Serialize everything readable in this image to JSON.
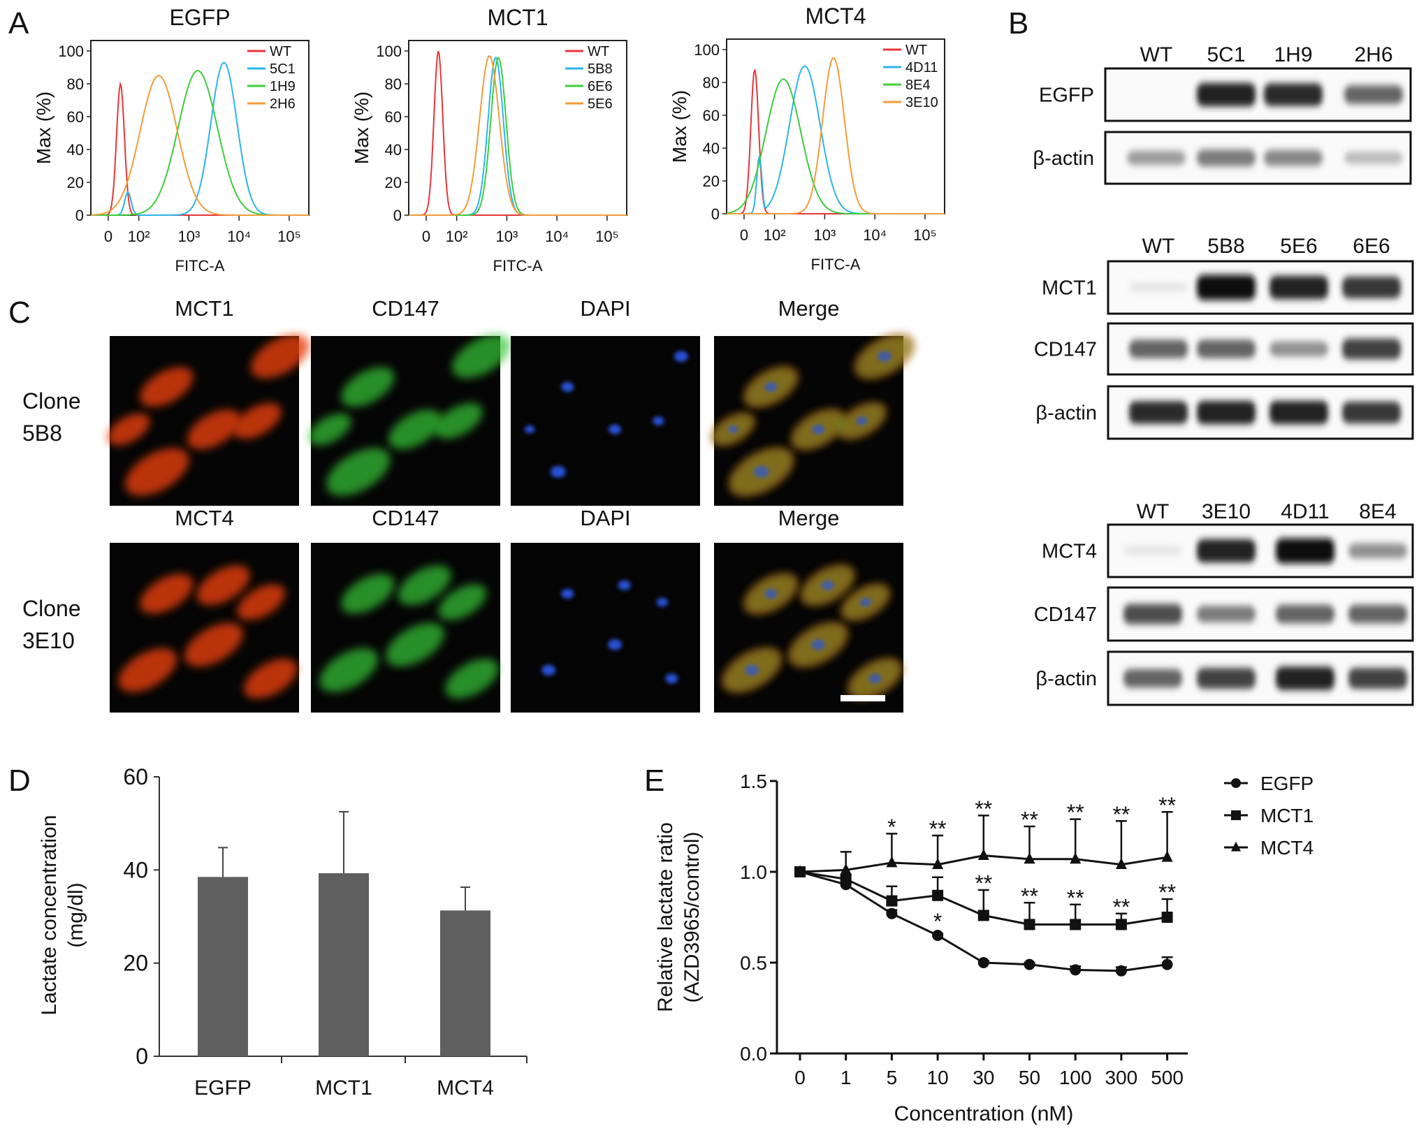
{
  "panel_labels": {
    "a": "A",
    "b": "B",
    "c": "C",
    "d": "D",
    "e": "E"
  },
  "colors": {
    "WT": "#e8363a",
    "blue": "#2bb5ea",
    "green": "#3dcc3d",
    "orange": "#f39c3a",
    "bar": "#5f5f5f",
    "mct_red": "#e8400f",
    "cd147_green": "#37c837",
    "dapi_blue": "#2a55e0"
  },
  "chart_data": [
    {
      "type": "line",
      "panel": "A",
      "title": "EGFP",
      "xlabel": "FITC-A",
      "ylabel": "Max (%)",
      "x_ticks": [
        "0",
        "10²",
        "10³",
        "10⁴",
        "10⁵"
      ],
      "y_ticks": [
        "0",
        "20",
        "40",
        "60",
        "80",
        "100"
      ],
      "ylim": [
        0,
        100
      ],
      "series": [
        {
          "name": "WT",
          "color": "#e8363a",
          "peak_fitc": 40,
          "peak_max_pct": 80
        },
        {
          "name": "5C1",
          "color": "#2bb5ea",
          "peak_fitc": 5000,
          "peak_max_pct": 93
        },
        {
          "name": "1H9",
          "color": "#3dcc3d",
          "peak_fitc": 1500,
          "peak_max_pct": 88
        },
        {
          "name": "2H6",
          "color": "#f39c3a",
          "peak_fitc": 250,
          "peak_max_pct": 85
        }
      ]
    },
    {
      "type": "line",
      "panel": "A",
      "title": "MCT1",
      "xlabel": "FITC-A",
      "ylabel": "Max (%)",
      "x_ticks": [
        "0",
        "10²",
        "10³",
        "10⁴",
        "10⁵"
      ],
      "y_ticks": [
        "0",
        "20",
        "40",
        "60",
        "80",
        "100"
      ],
      "ylim": [
        0,
        100
      ],
      "series": [
        {
          "name": "WT",
          "color": "#e8363a",
          "peak_fitc": 40,
          "peak_max_pct": 100
        },
        {
          "name": "5B8",
          "color": "#2bb5ea",
          "peak_fitc": 600,
          "peak_max_pct": 96
        },
        {
          "name": "6E6",
          "color": "#3dcc3d",
          "peak_fitc": 680,
          "peak_max_pct": 96
        },
        {
          "name": "5E6",
          "color": "#f39c3a",
          "peak_fitc": 450,
          "peak_max_pct": 97
        }
      ]
    },
    {
      "type": "line",
      "panel": "A",
      "title": "MCT4",
      "xlabel": "FITC-A",
      "ylabel": "Max (%)",
      "x_ticks": [
        "0",
        "10²",
        "10³",
        "10⁴",
        "10⁵"
      ],
      "y_ticks": [
        "0",
        "20",
        "40",
        "60",
        "80",
        "100"
      ],
      "ylim": [
        0,
        100
      ],
      "series": [
        {
          "name": "WT",
          "color": "#e8363a",
          "peak_fitc": 35,
          "peak_max_pct": 88
        },
        {
          "name": "4D11",
          "color": "#2bb5ea",
          "peak_fitc": 400,
          "peak_max_pct": 90
        },
        {
          "name": "8E4",
          "color": "#3dcc3d",
          "peak_fitc": 150,
          "peak_max_pct": 82
        },
        {
          "name": "3E10",
          "color": "#f39c3a",
          "peak_fitc": 1500,
          "peak_max_pct": 95
        }
      ]
    },
    {
      "type": "bar",
      "panel": "D",
      "categories": [
        "EGFP",
        "MCT1",
        "MCT4"
      ],
      "values": [
        38.5,
        39.3,
        31.3
      ],
      "errors": [
        6.3,
        13.2,
        5.0
      ],
      "ylabel_lines": [
        "Lactate concentration",
        "(mg/dl)"
      ],
      "xlabel": "",
      "y_ticks": [
        "0",
        "20",
        "40",
        "60"
      ],
      "ylim": [
        0,
        60
      ]
    },
    {
      "type": "line",
      "panel": "E",
      "x": [
        "0",
        "1",
        "5",
        "10",
        "30",
        "50",
        "100",
        "300",
        "500"
      ],
      "xlabel": "Concentration (nM)",
      "ylabel_lines": [
        "Relative lactate ratio",
        "(AZD3965/control)"
      ],
      "y_ticks": [
        "0.0",
        "0.5",
        "1.0",
        "1.5"
      ],
      "ylim": [
        0,
        1.5
      ],
      "legend_position": "top-right",
      "series": [
        {
          "name": "EGFP",
          "marker": "circle",
          "values": [
            1.0,
            0.93,
            0.77,
            0.65,
            0.5,
            0.49,
            0.46,
            0.455,
            0.49
          ],
          "errors": [
            0,
            0.01,
            0.02,
            0.01,
            0.01,
            0.01,
            0.02,
            0.02,
            0.04
          ]
        },
        {
          "name": "MCT1",
          "marker": "square",
          "values": [
            1.0,
            0.96,
            0.84,
            0.87,
            0.76,
            0.71,
            0.71,
            0.71,
            0.75
          ],
          "errors": [
            0,
            0.02,
            0.08,
            0.1,
            0.14,
            0.12,
            0.11,
            0.06,
            0.1
          ]
        },
        {
          "name": "MCT4",
          "marker": "triangle",
          "values": [
            1.0,
            1.01,
            1.05,
            1.04,
            1.09,
            1.07,
            1.07,
            1.04,
            1.08
          ],
          "errors": [
            0,
            0.1,
            0.16,
            0.16,
            0.22,
            0.18,
            0.22,
            0.24,
            0.25
          ]
        }
      ],
      "annotations": [
        {
          "series": "MCT4",
          "x": "5",
          "text": "*"
        },
        {
          "series": "MCT4",
          "x": "10",
          "text": "**"
        },
        {
          "series": "MCT4",
          "x": "30",
          "text": "**"
        },
        {
          "series": "MCT4",
          "x": "50",
          "text": "**"
        },
        {
          "series": "MCT4",
          "x": "100",
          "text": "**"
        },
        {
          "series": "MCT4",
          "x": "300",
          "text": "**"
        },
        {
          "series": "MCT4",
          "x": "500",
          "text": "**"
        },
        {
          "series": "MCT1",
          "x": "30",
          "text": "**"
        },
        {
          "series": "MCT1",
          "x": "50",
          "text": "**"
        },
        {
          "series": "MCT1",
          "x": "100",
          "text": "**"
        },
        {
          "series": "MCT1",
          "x": "300",
          "text": "**"
        },
        {
          "series": "MCT1",
          "x": "500",
          "text": "**"
        },
        {
          "series": "EGFP",
          "x": "10",
          "text": "*"
        }
      ]
    }
  ],
  "blots": [
    {
      "lanes": [
        "WT",
        "5C1",
        "1H9",
        "2H6"
      ],
      "rows": [
        {
          "label": "EGFP",
          "intensity": [
            0.0,
            0.9,
            0.85,
            0.6
          ]
        },
        {
          "label": "β-actin",
          "intensity": [
            0.35,
            0.5,
            0.45,
            0.22
          ]
        }
      ]
    },
    {
      "lanes": [
        "WT",
        "5B8",
        "5E6",
        "6E6"
      ],
      "rows": [
        {
          "label": "MCT1",
          "intensity": [
            0.03,
            1.0,
            0.9,
            0.8
          ]
        },
        {
          "label": "CD147",
          "intensity": [
            0.6,
            0.6,
            0.4,
            0.75
          ]
        },
        {
          "label": "β-actin",
          "intensity": [
            0.85,
            0.9,
            0.9,
            0.8
          ]
        }
      ]
    },
    {
      "lanes": [
        "WT",
        "3E10",
        "4D11",
        "8E4"
      ],
      "rows": [
        {
          "label": "MCT4",
          "intensity": [
            0.03,
            0.9,
            1.0,
            0.4
          ]
        },
        {
          "label": "CD147",
          "intensity": [
            0.7,
            0.5,
            0.6,
            0.6
          ]
        },
        {
          "label": "β-actin",
          "intensity": [
            0.6,
            0.75,
            0.9,
            0.75
          ]
        }
      ]
    }
  ],
  "microscopy": {
    "rows": [
      {
        "label_lines": [
          "Clone",
          "5B8"
        ],
        "columns": [
          "MCT1",
          "CD147",
          "DAPI",
          "Merge"
        ]
      },
      {
        "label_lines": [
          "Clone",
          "3E10"
        ],
        "columns": [
          "MCT4",
          "CD147",
          "DAPI",
          "Merge"
        ]
      }
    ]
  }
}
